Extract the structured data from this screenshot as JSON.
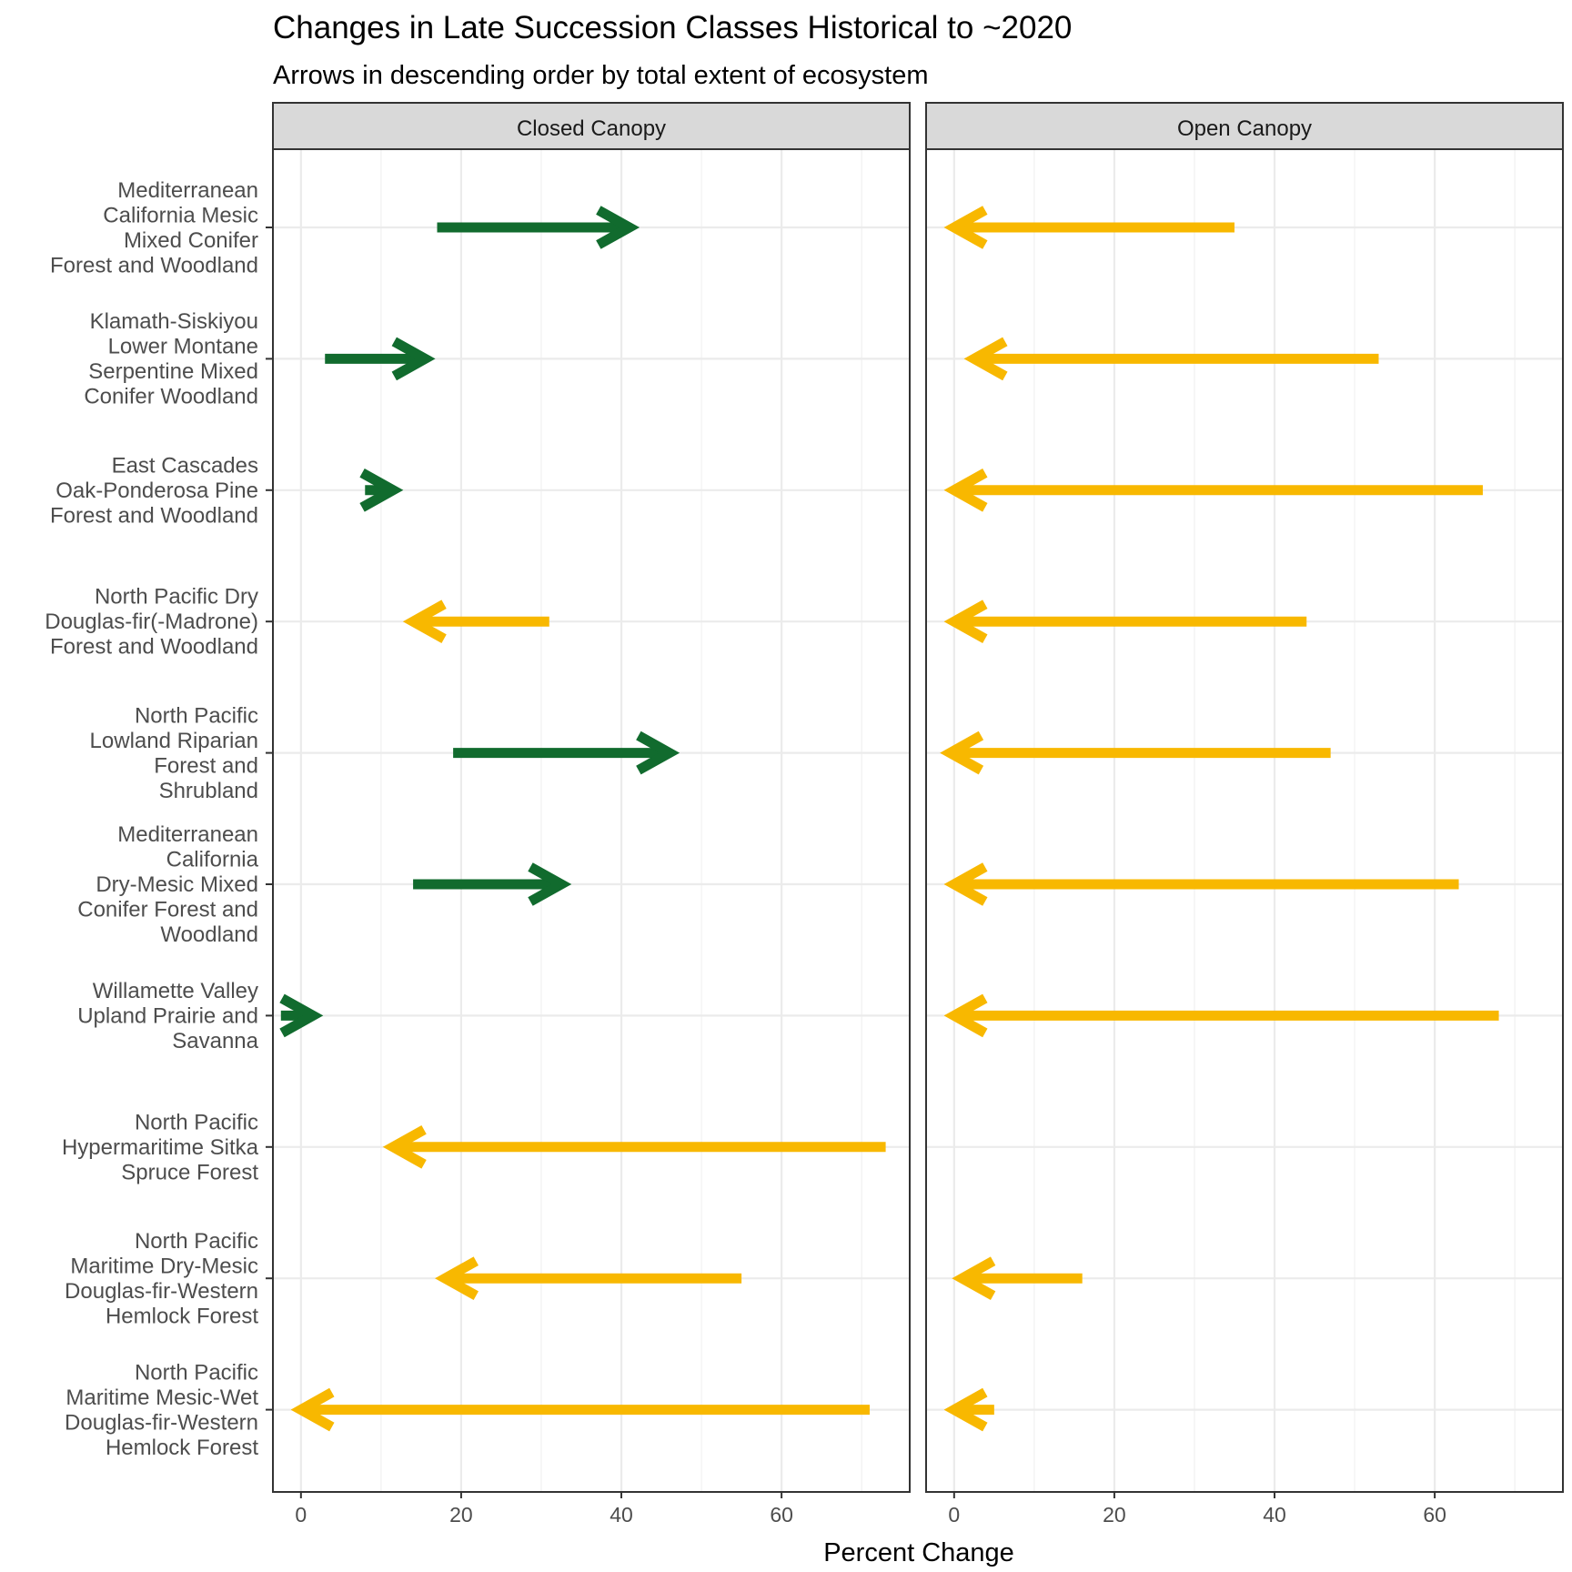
{
  "chart_data": {
    "type": "arrow",
    "title": "Changes in Late Succession Classes Historical to ~2020",
    "subtitle": "Arrows in descending order by total extent of ecosystem",
    "xlabel": "Percent Change",
    "ylabel": "",
    "xlim": [
      -3.5,
      76
    ],
    "xticks": [
      0,
      20,
      40,
      60
    ],
    "grid": true,
    "colors": {
      "increase": "#116b2e",
      "decrease": "#f8b800"
    },
    "categories": [
      "Mediterranean\nCalifornia Mesic\nMixed Conifer\nForest and Woodland",
      "Klamath-Siskiyou\nLower Montane\nSerpentine Mixed\nConifer Woodland",
      "East Cascades\nOak-Ponderosa Pine\nForest and Woodland",
      "North Pacific Dry\nDouglas-fir(-Madrone)\nForest and Woodland",
      "North Pacific\nLowland Riparian\nForest and\nShrubland",
      "Mediterranean\nCalifornia\nDry-Mesic Mixed\nConifer Forest and\nWoodland",
      "Willamette Valley\nUpland Prairie and\nSavanna",
      "North Pacific\nHypermaritime Sitka\nSpruce Forest",
      "North Pacific\nMaritime Dry-Mesic\nDouglas-fir-Western\nHemlock Forest",
      "North Pacific\nMaritime Mesic-Wet\nDouglas-fir-Western\nHemlock Forest"
    ],
    "panels": [
      {
        "name": "Closed Canopy",
        "arrows": [
          {
            "from": 17,
            "to": 41
          },
          {
            "from": 3,
            "to": 15.5
          },
          {
            "from": 8,
            "to": 11.5
          },
          {
            "from": 31,
            "to": 14
          },
          {
            "from": 19,
            "to": 46
          },
          {
            "from": 14,
            "to": 32.5
          },
          {
            "from": -2.5,
            "to": 1.5
          },
          {
            "from": 73,
            "to": 11.5
          },
          {
            "from": 55,
            "to": 18
          },
          {
            "from": 71,
            "to": 0
          }
        ]
      },
      {
        "name": "Open Canopy",
        "arrows": [
          {
            "from": 35,
            "to": 0
          },
          {
            "from": 53,
            "to": 2.5
          },
          {
            "from": 66,
            "to": 0
          },
          {
            "from": 44,
            "to": 0
          },
          {
            "from": 47,
            "to": -0.5
          },
          {
            "from": 63,
            "to": 0
          },
          {
            "from": 68,
            "to": 0
          },
          null,
          {
            "from": 16,
            "to": 1
          },
          {
            "from": 5,
            "to": 0
          }
        ]
      }
    ]
  }
}
